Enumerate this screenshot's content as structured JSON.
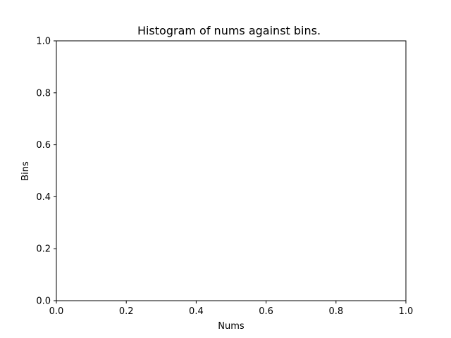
{
  "chart_data": {
    "type": "bar",
    "title": "Histogram of nums against bins.",
    "xlabel": "Nums",
    "ylabel": "Bins",
    "xlim": [
      0.0,
      1.0
    ],
    "ylim": [
      0.0,
      1.0
    ],
    "xticks": [
      0.0,
      0.2,
      0.4,
      0.6,
      0.8,
      1.0
    ],
    "yticks": [
      0.0,
      0.2,
      0.4,
      0.6,
      0.8,
      1.0
    ],
    "xtick_labels": [
      "0.0",
      "0.2",
      "0.4",
      "0.6",
      "0.8",
      "1.0"
    ],
    "ytick_labels": [
      "0.0",
      "0.2",
      "0.4",
      "0.6",
      "0.8",
      "1.0"
    ],
    "values": [],
    "grid": false,
    "legend": "none"
  }
}
